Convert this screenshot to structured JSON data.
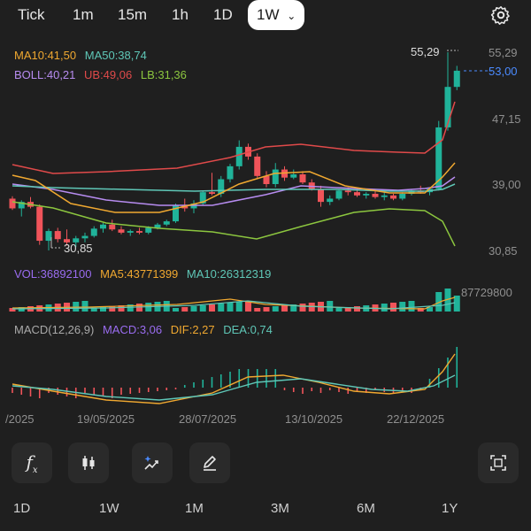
{
  "timeframes": [
    "Tick",
    "1m",
    "15m",
    "1h",
    "1D"
  ],
  "active_timeframe": "1W",
  "legend": {
    "ma10": "MA10:41,50",
    "ma50": "MA50:38,74",
    "boll": "BOLL:40,21",
    "ub": "UB:49,06",
    "lb": "LB:31,36",
    "vol": "VOL:36892100",
    "ma5v": "MA5:43771399",
    "ma10v": "MA10:26312319",
    "macd_title": "MACD(12,26,9)",
    "macd": "MACD:3,06",
    "dif": "DIF:2,27",
    "dea": "DEA:0,74"
  },
  "price_axis": {
    "top": "55,29",
    "current": "53,00",
    "p1": "47,15",
    "p2": "39,00",
    "p3": "30,85",
    "high_marker": "55,29",
    "low_marker": "30,85"
  },
  "volume_axis": "87729800",
  "dates": [
    "/2025",
    "19/05/2025",
    "28/07/2025",
    "13/10/2025",
    "22/12/2025"
  ],
  "ranges": [
    "1D",
    "1W",
    "1M",
    "3M",
    "6M",
    "1Y"
  ],
  "colors": {
    "up": "#20b39a",
    "down": "#f0545a",
    "ma10": "#f0a830",
    "ma50": "#5fc7b7",
    "boll": "#b78cf0",
    "ub": "#e04a4a",
    "lb": "#8cc63f",
    "accent": "#4b8bff"
  }
}
